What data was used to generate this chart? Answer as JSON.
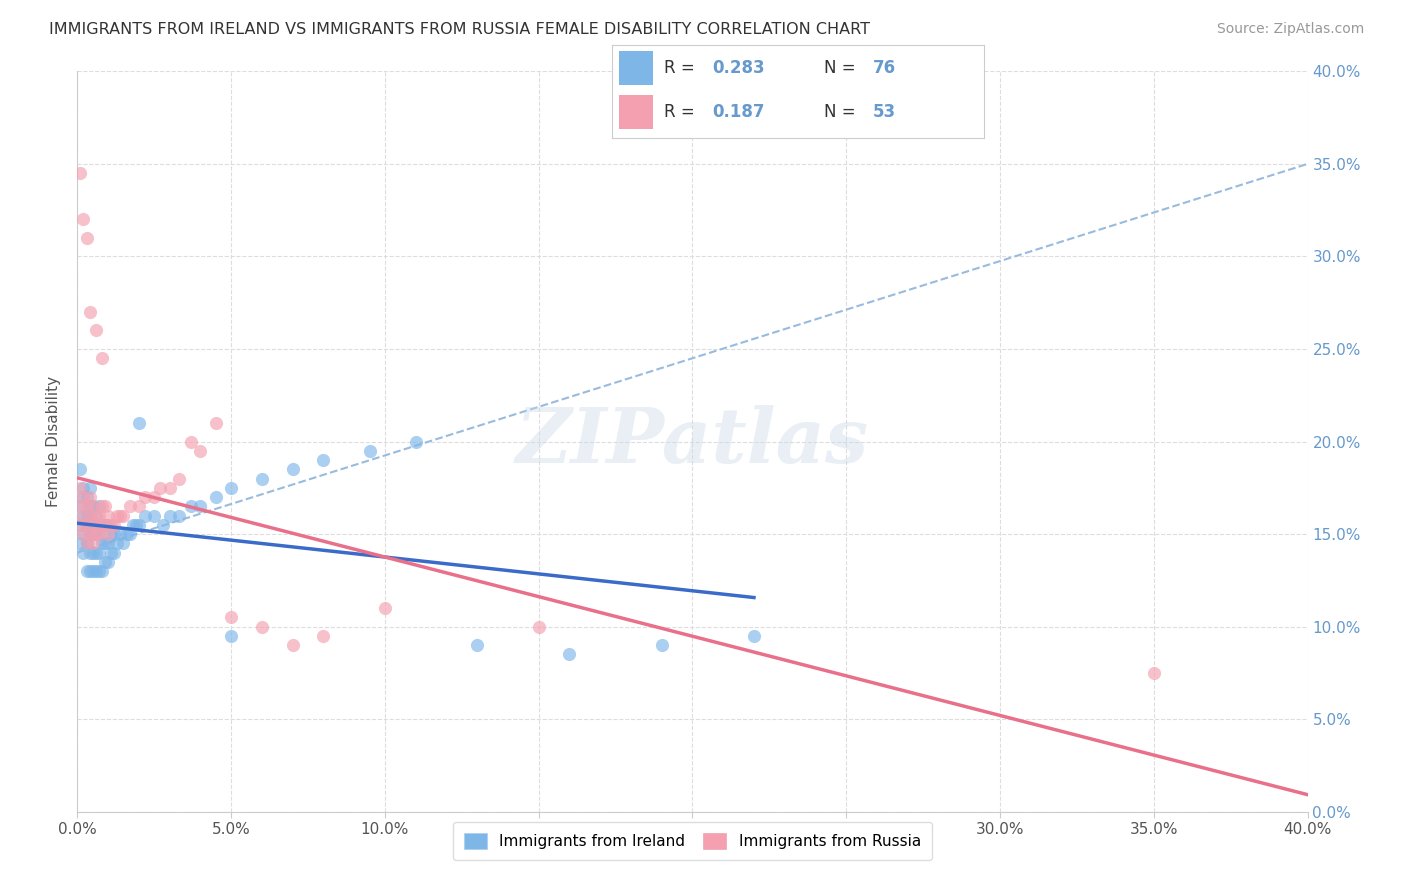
{
  "title": "IMMIGRANTS FROM IRELAND VS IMMIGRANTS FROM RUSSIA FEMALE DISABILITY CORRELATION CHART",
  "source": "Source: ZipAtlas.com",
  "ylabel": "Female Disability",
  "xlim": [
    0,
    0.4
  ],
  "ylim": [
    0,
    0.4
  ],
  "xtick_vals": [
    0.0,
    0.05,
    0.1,
    0.15,
    0.2,
    0.25,
    0.3,
    0.35,
    0.4
  ],
  "ytick_vals": [
    0.0,
    0.05,
    0.1,
    0.15,
    0.2,
    0.25,
    0.3,
    0.35,
    0.4
  ],
  "tick_labels": [
    "0.0%",
    "5.0%",
    "10.0%",
    "15.0%",
    "20.0%",
    "25.0%",
    "30.0%",
    "35.0%",
    "40.0%"
  ],
  "ireland_R": 0.283,
  "ireland_N": 76,
  "russia_R": 0.187,
  "russia_N": 53,
  "ireland_color": "#7EB6E8",
  "russia_color": "#F4A0B0",
  "ireland_line_color": "#3B6BC8",
  "russia_line_color": "#E8708A",
  "dash_line_color": "#99BBDD",
  "grid_color": "#DDDDDD",
  "background_color": "#FFFFFF",
  "title_color": "#333333",
  "right_tick_color": "#6699CC",
  "ireland_x": [
    0.001,
    0.001,
    0.001,
    0.002,
    0.002,
    0.002,
    0.002,
    0.003,
    0.003,
    0.003,
    0.003,
    0.003,
    0.003,
    0.004,
    0.004,
    0.004,
    0.004,
    0.004,
    0.004,
    0.004,
    0.005,
    0.005,
    0.005,
    0.005,
    0.005,
    0.006,
    0.006,
    0.006,
    0.006,
    0.007,
    0.007,
    0.007,
    0.007,
    0.008,
    0.008,
    0.008,
    0.009,
    0.009,
    0.009,
    0.01,
    0.01,
    0.01,
    0.011,
    0.011,
    0.012,
    0.012,
    0.013,
    0.014,
    0.015,
    0.016,
    0.017,
    0.018,
    0.019,
    0.02,
    0.022,
    0.025,
    0.028,
    0.03,
    0.033,
    0.037,
    0.04,
    0.045,
    0.05,
    0.06,
    0.07,
    0.08,
    0.095,
    0.11,
    0.13,
    0.16,
    0.19,
    0.22,
    0.001,
    0.002,
    0.02,
    0.05
  ],
  "ireland_y": [
    0.145,
    0.155,
    0.165,
    0.14,
    0.15,
    0.16,
    0.17,
    0.13,
    0.145,
    0.155,
    0.16,
    0.145,
    0.17,
    0.13,
    0.14,
    0.15,
    0.155,
    0.16,
    0.165,
    0.175,
    0.13,
    0.14,
    0.15,
    0.155,
    0.165,
    0.13,
    0.14,
    0.15,
    0.16,
    0.13,
    0.14,
    0.15,
    0.165,
    0.13,
    0.145,
    0.155,
    0.135,
    0.145,
    0.155,
    0.135,
    0.145,
    0.155,
    0.14,
    0.15,
    0.14,
    0.15,
    0.145,
    0.15,
    0.145,
    0.15,
    0.15,
    0.155,
    0.155,
    0.155,
    0.16,
    0.16,
    0.155,
    0.16,
    0.16,
    0.165,
    0.165,
    0.17,
    0.175,
    0.18,
    0.185,
    0.19,
    0.195,
    0.2,
    0.09,
    0.085,
    0.09,
    0.095,
    0.185,
    0.175,
    0.21,
    0.095
  ],
  "russia_x": [
    0.001,
    0.001,
    0.001,
    0.002,
    0.002,
    0.002,
    0.003,
    0.003,
    0.003,
    0.004,
    0.004,
    0.004,
    0.005,
    0.005,
    0.005,
    0.006,
    0.006,
    0.007,
    0.007,
    0.008,
    0.008,
    0.009,
    0.009,
    0.01,
    0.01,
    0.011,
    0.012,
    0.013,
    0.014,
    0.015,
    0.017,
    0.02,
    0.022,
    0.025,
    0.027,
    0.03,
    0.033,
    0.037,
    0.04,
    0.045,
    0.05,
    0.06,
    0.07,
    0.08,
    0.1,
    0.001,
    0.002,
    0.003,
    0.004,
    0.006,
    0.008,
    0.35,
    0.15
  ],
  "russia_y": [
    0.155,
    0.165,
    0.175,
    0.15,
    0.16,
    0.17,
    0.145,
    0.155,
    0.165,
    0.15,
    0.16,
    0.17,
    0.145,
    0.155,
    0.165,
    0.15,
    0.16,
    0.15,
    0.16,
    0.155,
    0.165,
    0.155,
    0.165,
    0.15,
    0.16,
    0.155,
    0.155,
    0.16,
    0.16,
    0.16,
    0.165,
    0.165,
    0.17,
    0.17,
    0.175,
    0.175,
    0.18,
    0.2,
    0.195,
    0.21,
    0.105,
    0.1,
    0.09,
    0.095,
    0.11,
    0.345,
    0.32,
    0.31,
    0.27,
    0.26,
    0.245,
    0.075,
    0.1
  ],
  "watermark_text": "ZIPatlas",
  "legend_ireland": "Immigrants from Ireland",
  "legend_russia": "Immigrants from Russia"
}
